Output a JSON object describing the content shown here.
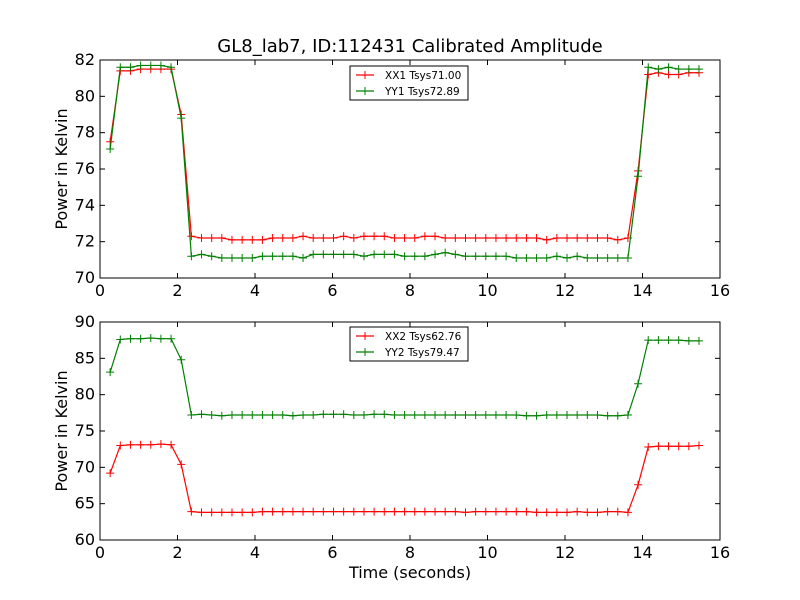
{
  "title": "GL8_lab7, ID:112431 Calibrated Amplitude",
  "colors": {
    "red": "#ff0000",
    "green": "#008000"
  },
  "chart_data": [
    {
      "type": "line",
      "xlabel": "",
      "ylabel": "Power in Kelvin",
      "xlim": [
        0,
        16
      ],
      "ylim": [
        70,
        82
      ],
      "xticks": [
        "0",
        "2",
        "4",
        "6",
        "8",
        "10",
        "12",
        "14",
        "16"
      ],
      "yticks": [
        "70",
        "72",
        "74",
        "76",
        "78",
        "80",
        "82"
      ],
      "grid": false,
      "legend_position": "top-center",
      "x": [
        0.262,
        0.524,
        0.786,
        1.048,
        1.31,
        1.572,
        1.834,
        2.096,
        2.358,
        2.62,
        2.882,
        3.144,
        3.406,
        3.668,
        3.93,
        4.192,
        4.454,
        4.716,
        4.978,
        5.24,
        5.502,
        5.764,
        6.026,
        6.288,
        6.55,
        6.812,
        7.074,
        7.336,
        7.598,
        7.86,
        8.122,
        8.384,
        8.646,
        8.908,
        9.17,
        9.432,
        9.694,
        9.956,
        10.218,
        10.48,
        10.742,
        11.004,
        11.266,
        11.528,
        11.79,
        12.052,
        12.314,
        12.576,
        12.838,
        13.1,
        13.362,
        13.624,
        13.886,
        14.148,
        14.41,
        14.672,
        14.934,
        15.196,
        15.458
      ],
      "series": [
        {
          "name": "XX1 Tsys71.00",
          "color": "#ff0000",
          "values": [
            77.5,
            81.4,
            81.4,
            81.5,
            81.5,
            81.5,
            81.5,
            79.0,
            72.3,
            72.2,
            72.2,
            72.2,
            72.1,
            72.1,
            72.1,
            72.1,
            72.2,
            72.2,
            72.2,
            72.3,
            72.2,
            72.2,
            72.2,
            72.3,
            72.2,
            72.3,
            72.3,
            72.3,
            72.2,
            72.2,
            72.2,
            72.3,
            72.3,
            72.2,
            72.2,
            72.2,
            72.2,
            72.2,
            72.2,
            72.2,
            72.2,
            72.2,
            72.2,
            72.1,
            72.2,
            72.2,
            72.2,
            72.2,
            72.2,
            72.2,
            72.1,
            72.2,
            75.9,
            81.2,
            81.3,
            81.2,
            81.2,
            81.3,
            81.3
          ]
        },
        {
          "name": "YY1 Tsys72.89",
          "color": "#008000",
          "values": [
            77.1,
            81.6,
            81.6,
            81.7,
            81.7,
            81.7,
            81.6,
            78.8,
            71.2,
            71.3,
            71.2,
            71.1,
            71.1,
            71.1,
            71.1,
            71.2,
            71.2,
            71.2,
            71.2,
            71.1,
            71.3,
            71.3,
            71.3,
            71.3,
            71.3,
            71.2,
            71.3,
            71.3,
            71.3,
            71.2,
            71.2,
            71.2,
            71.3,
            71.4,
            71.3,
            71.2,
            71.2,
            71.2,
            71.2,
            71.2,
            71.1,
            71.1,
            71.1,
            71.1,
            71.2,
            71.1,
            71.2,
            71.1,
            71.1,
            71.1,
            71.1,
            71.1,
            75.6,
            81.6,
            81.5,
            81.6,
            81.5,
            81.5,
            81.5
          ]
        }
      ]
    },
    {
      "type": "line",
      "xlabel": "Time (seconds)",
      "ylabel": "Power in Kelvin",
      "xlim": [
        0,
        16
      ],
      "ylim": [
        60,
        90
      ],
      "xticks": [
        "0",
        "2",
        "4",
        "6",
        "8",
        "10",
        "12",
        "14",
        "16"
      ],
      "yticks": [
        "60",
        "65",
        "70",
        "75",
        "80",
        "85",
        "90"
      ],
      "grid": false,
      "legend_position": "top-center",
      "x": [
        0.262,
        0.524,
        0.786,
        1.048,
        1.31,
        1.572,
        1.834,
        2.096,
        2.358,
        2.62,
        2.882,
        3.144,
        3.406,
        3.668,
        3.93,
        4.192,
        4.454,
        4.716,
        4.978,
        5.24,
        5.502,
        5.764,
        6.026,
        6.288,
        6.55,
        6.812,
        7.074,
        7.336,
        7.598,
        7.86,
        8.122,
        8.384,
        8.646,
        8.908,
        9.17,
        9.432,
        9.694,
        9.956,
        10.218,
        10.48,
        10.742,
        11.004,
        11.266,
        11.528,
        11.79,
        12.052,
        12.314,
        12.576,
        12.838,
        13.1,
        13.362,
        13.624,
        13.886,
        14.148,
        14.41,
        14.672,
        14.934,
        15.196,
        15.458
      ],
      "series": [
        {
          "name": "XX2 Tsys62.76",
          "color": "#ff0000",
          "values": [
            69.2,
            73.0,
            73.1,
            73.1,
            73.1,
            73.2,
            73.1,
            70.4,
            63.9,
            63.8,
            63.8,
            63.8,
            63.8,
            63.8,
            63.8,
            63.9,
            63.9,
            63.9,
            63.9,
            63.9,
            63.9,
            63.9,
            63.9,
            63.9,
            63.9,
            63.9,
            63.9,
            63.9,
            63.9,
            63.9,
            63.9,
            63.9,
            63.9,
            63.9,
            63.9,
            63.8,
            63.9,
            63.9,
            63.9,
            63.9,
            63.9,
            63.9,
            63.8,
            63.8,
            63.8,
            63.8,
            63.9,
            63.8,
            63.8,
            63.9,
            63.9,
            63.8,
            67.6,
            72.8,
            72.9,
            72.9,
            72.9,
            72.9,
            73.0
          ]
        },
        {
          "name": "YY2 Tsys79.47",
          "color": "#008000",
          "values": [
            83.1,
            87.6,
            87.7,
            87.7,
            87.8,
            87.7,
            87.7,
            84.8,
            77.2,
            77.3,
            77.2,
            77.1,
            77.2,
            77.2,
            77.2,
            77.2,
            77.2,
            77.2,
            77.1,
            77.2,
            77.2,
            77.3,
            77.3,
            77.3,
            77.2,
            77.2,
            77.3,
            77.3,
            77.2,
            77.2,
            77.2,
            77.2,
            77.2,
            77.2,
            77.2,
            77.2,
            77.2,
            77.2,
            77.2,
            77.2,
            77.2,
            77.1,
            77.1,
            77.2,
            77.2,
            77.2,
            77.2,
            77.2,
            77.2,
            77.1,
            77.1,
            77.2,
            81.5,
            87.5,
            87.5,
            87.5,
            87.5,
            87.4,
            87.4
          ]
        }
      ]
    }
  ]
}
